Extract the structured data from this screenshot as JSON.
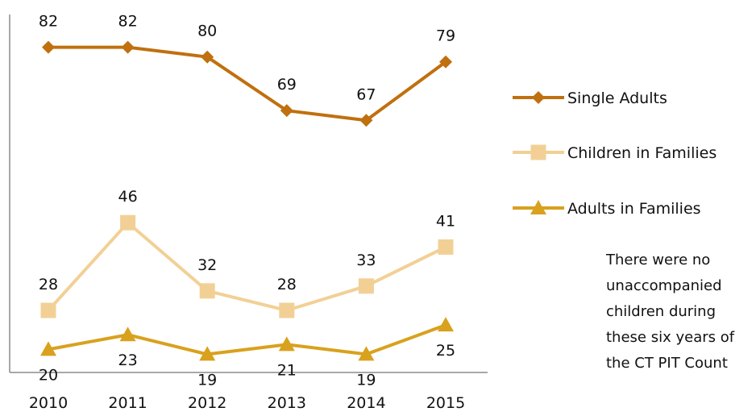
{
  "chart_data": {
    "type": "line",
    "title": "",
    "xlabel": "",
    "ylabel": "",
    "categories": [
      "2010",
      "2011",
      "2012",
      "2013",
      "2014",
      "2015"
    ],
    "ylim": [
      15,
      85
    ],
    "grid": false,
    "legend": "right",
    "series": [
      {
        "name": "Single Adults",
        "values": [
          82,
          82,
          80,
          69,
          67,
          79
        ],
        "color": "#c0700f",
        "marker": "diamond",
        "label_pos": "above"
      },
      {
        "name": "Children in Families",
        "values": [
          28,
          46,
          32,
          28,
          33,
          41
        ],
        "color": "#f2d095",
        "marker": "square",
        "label_pos": "above"
      },
      {
        "name": "Adults in Families",
        "values": [
          20,
          23,
          19,
          21,
          19,
          25
        ],
        "color": "#d9a11d",
        "marker": "triangle",
        "label_pos": "below"
      }
    ]
  },
  "note": "There were no unaccompanied children during these six years of the CT PIT Count"
}
